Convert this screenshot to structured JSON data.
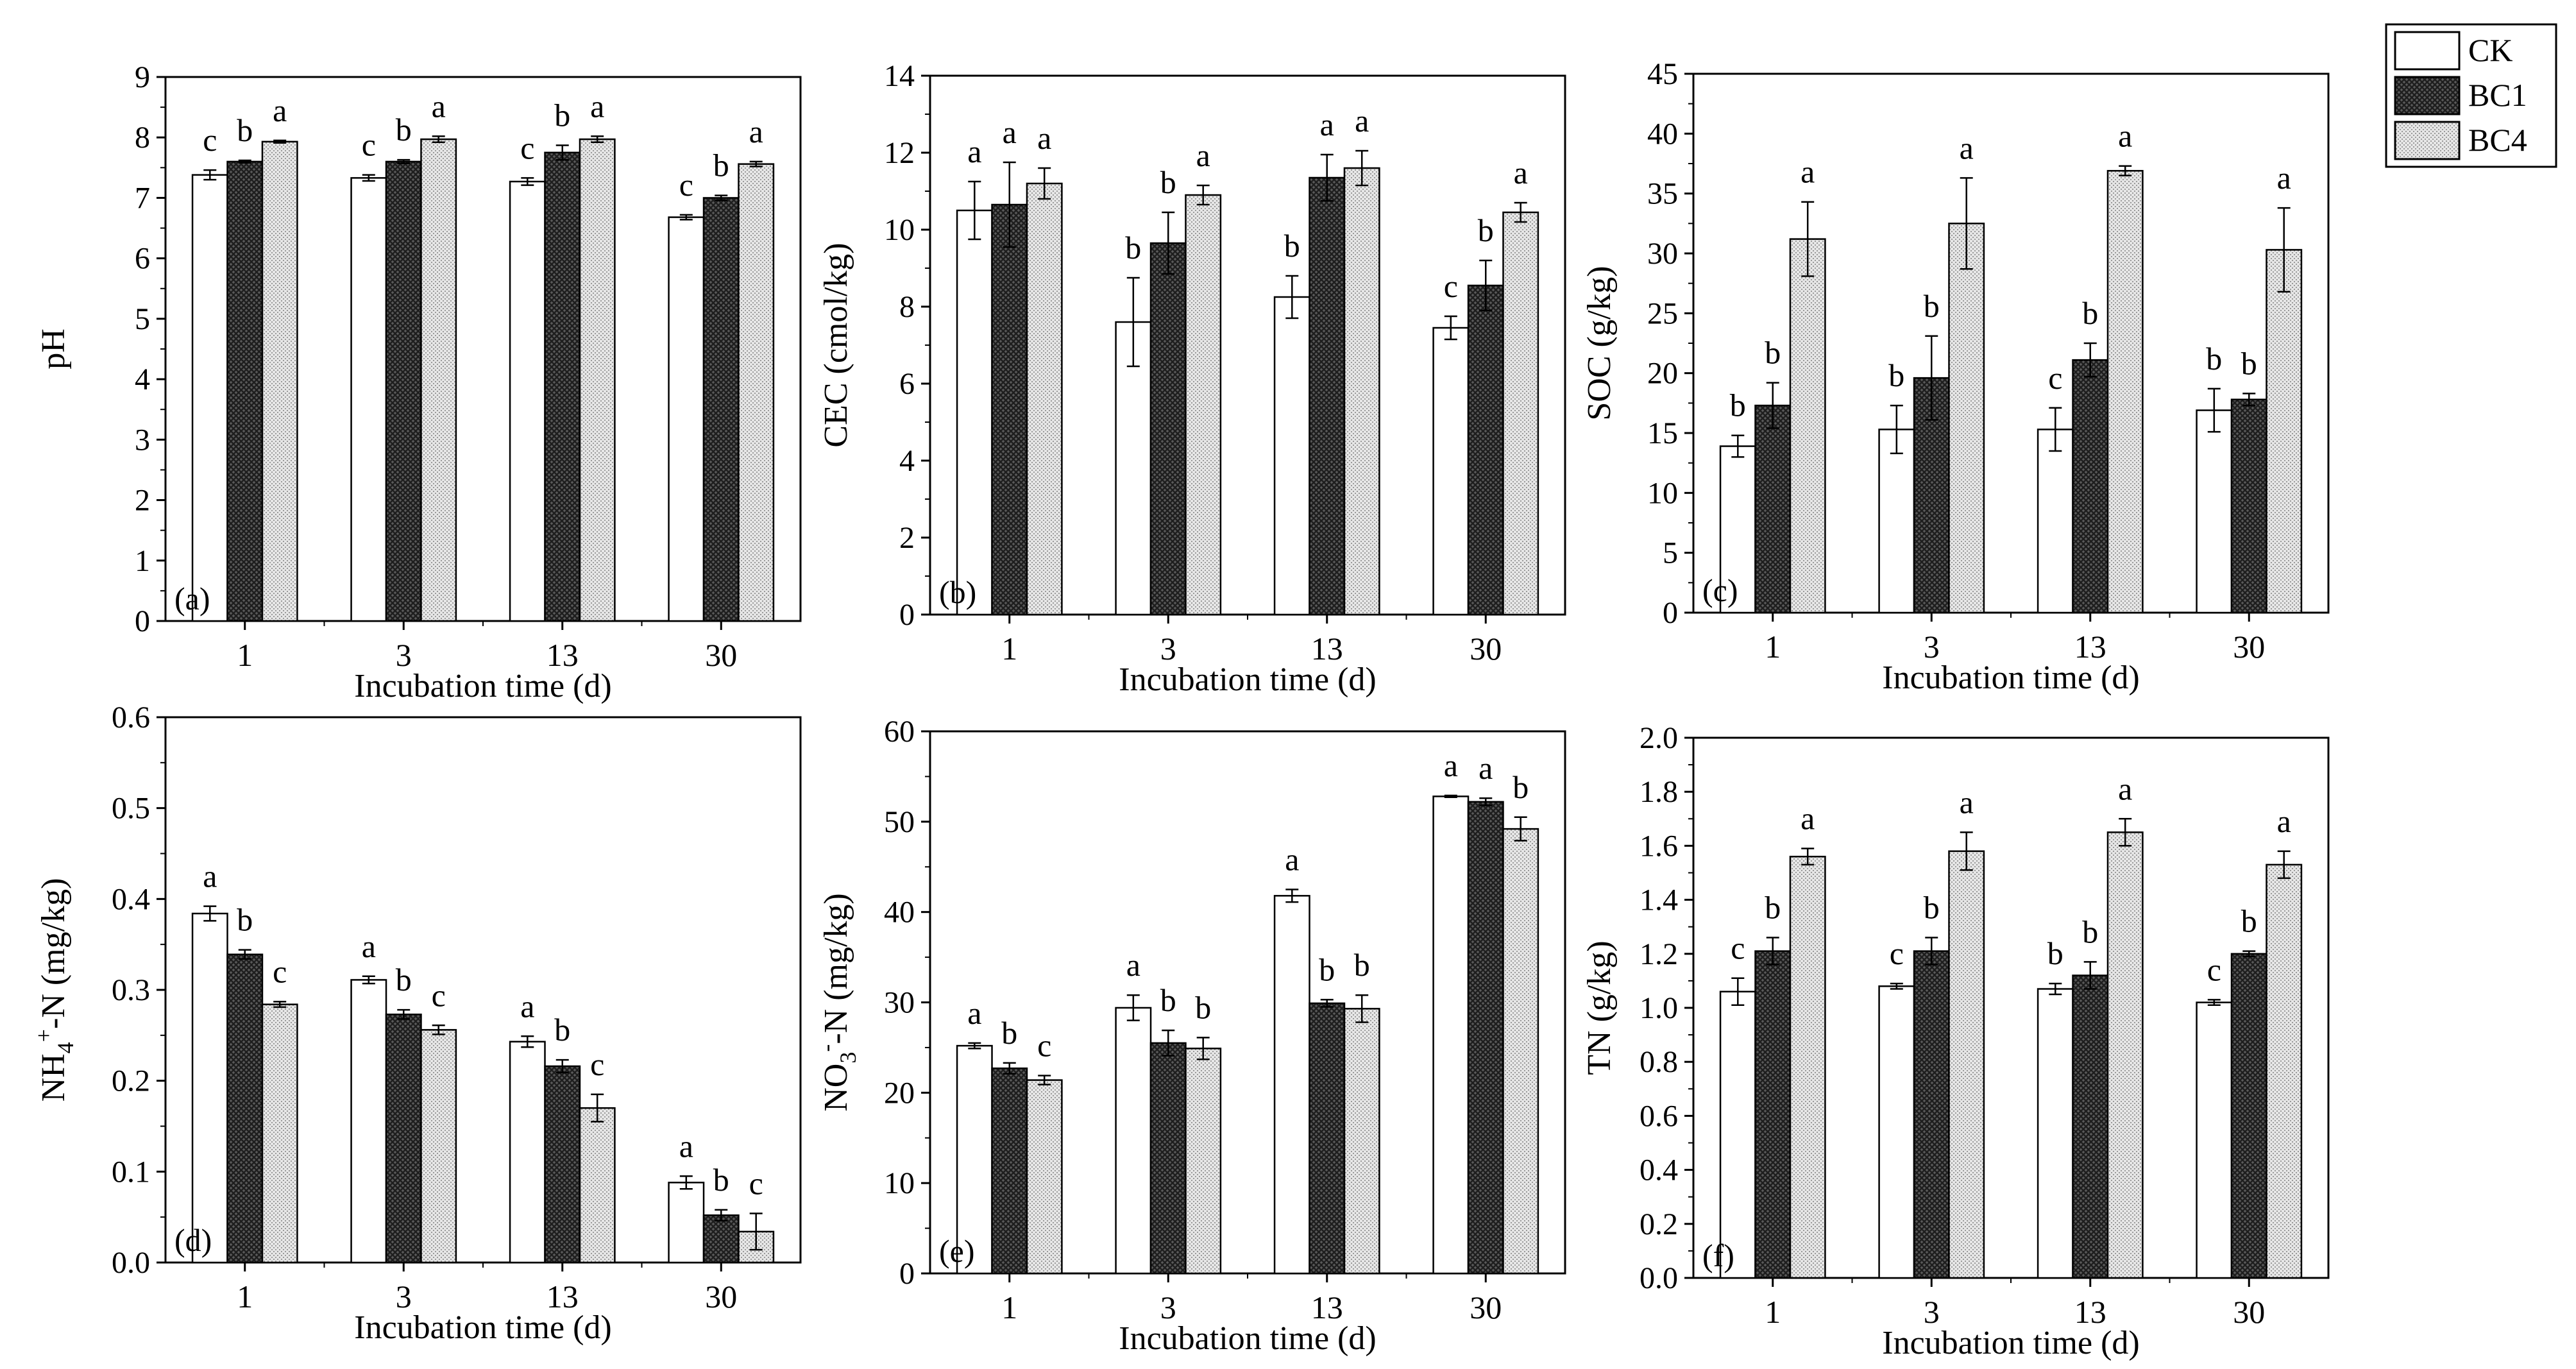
{
  "legend": {
    "entries": [
      {
        "name": "CK",
        "pattern": "white"
      },
      {
        "name": "BC1",
        "pattern": "dark-crosshatch"
      },
      {
        "name": "BC4",
        "pattern": "light-dots"
      }
    ]
  },
  "colors": {
    "ck_fill": "#ffffff",
    "bc1_fill": "#4a4a4a",
    "bc4_fill": "#dcdcdc",
    "axis": "#000000"
  },
  "chart_data": [
    {
      "type": "bar",
      "panel_label": "(a)",
      "categories": [
        "1",
        "3",
        "13",
        "30"
      ],
      "xlabel": "Incubation time (d)",
      "ylabel": "pH",
      "ylim": [
        0,
        9
      ],
      "yticks": [
        "0",
        "1",
        "2",
        "3",
        "4",
        "5",
        "6",
        "7",
        "8",
        "9"
      ],
      "series": [
        {
          "name": "CK",
          "values": [
            7.38,
            7.33,
            7.27,
            6.68
          ],
          "errors": [
            0.08,
            0.05,
            0.06,
            0.04
          ],
          "letters": [
            "c",
            "c",
            "c",
            "c"
          ]
        },
        {
          "name": "BC1",
          "values": [
            7.6,
            7.6,
            7.75,
            7.0
          ],
          "errors": [
            0.02,
            0.03,
            0.12,
            0.04
          ],
          "letters": [
            "b",
            "b",
            "b",
            "b"
          ]
        },
        {
          "name": "BC4",
          "values": [
            7.93,
            7.97,
            7.97,
            7.56
          ],
          "errors": [
            0.02,
            0.05,
            0.05,
            0.04
          ],
          "letters": [
            "a",
            "a",
            "a",
            "a"
          ]
        }
      ]
    },
    {
      "type": "bar",
      "panel_label": "(b)",
      "categories": [
        "1",
        "3",
        "13",
        "30"
      ],
      "xlabel": "Incubation time (d)",
      "ylabel": "CEC (cmol/kg)",
      "ylim": [
        0,
        14
      ],
      "yticks": [
        "0",
        "2",
        "4",
        "6",
        "8",
        "10",
        "12",
        "14"
      ],
      "series": [
        {
          "name": "CK",
          "values": [
            10.5,
            7.6,
            8.25,
            7.45
          ],
          "errors": [
            0.75,
            1.15,
            0.55,
            0.3
          ],
          "letters": [
            "a",
            "b",
            "b",
            "c"
          ]
        },
        {
          "name": "BC1",
          "values": [
            10.65,
            9.65,
            11.35,
            8.55
          ],
          "errors": [
            1.1,
            0.8,
            0.6,
            0.65
          ],
          "letters": [
            "a",
            "b",
            "a",
            "b"
          ]
        },
        {
          "name": "BC4",
          "values": [
            11.2,
            10.9,
            11.6,
            10.45
          ],
          "errors": [
            0.4,
            0.25,
            0.45,
            0.25
          ],
          "letters": [
            "a",
            "a",
            "a",
            "a"
          ]
        }
      ]
    },
    {
      "type": "bar",
      "panel_label": "(c)",
      "categories": [
        "1",
        "3",
        "13",
        "30"
      ],
      "xlabel": "Incubation time (d)",
      "ylabel": "SOC (g/kg)",
      "ylim": [
        0,
        45
      ],
      "yticks": [
        "0",
        "5",
        "10",
        "15",
        "20",
        "25",
        "30",
        "35",
        "40",
        "45"
      ],
      "series": [
        {
          "name": "CK",
          "values": [
            13.9,
            15.3,
            15.3,
            16.9
          ],
          "errors": [
            0.9,
            2.0,
            1.8,
            1.8
          ],
          "letters": [
            "b",
            "b",
            "c",
            "b"
          ]
        },
        {
          "name": "BC1",
          "values": [
            17.3,
            19.6,
            21.1,
            17.8
          ],
          "errors": [
            1.9,
            3.5,
            1.4,
            0.5
          ],
          "letters": [
            "b",
            "b",
            "b",
            "b"
          ]
        },
        {
          "name": "BC4",
          "values": [
            31.2,
            32.5,
            36.9,
            30.3
          ],
          "errors": [
            3.1,
            3.8,
            0.4,
            3.5
          ],
          "letters": [
            "a",
            "a",
            "a",
            "a"
          ]
        }
      ]
    },
    {
      "type": "bar",
      "panel_label": "(d)",
      "categories": [
        "1",
        "3",
        "13",
        "30"
      ],
      "xlabel": "Incubation time (d)",
      "ylabel_main": "NH",
      "ylabel_sub": "4",
      "ylabel_sup": "+",
      "ylabel_rest": "-N (mg/kg)",
      "ylim": [
        0,
        0.6
      ],
      "yticks": [
        "0.0",
        "0.1",
        "0.2",
        "0.3",
        "0.4",
        "0.5",
        "0.6"
      ],
      "series": [
        {
          "name": "CK",
          "values": [
            0.384,
            0.311,
            0.243,
            0.088
          ],
          "errors": [
            0.008,
            0.004,
            0.006,
            0.007
          ],
          "letters": [
            "a",
            "a",
            "a",
            "a"
          ]
        },
        {
          "name": "BC1",
          "values": [
            0.339,
            0.273,
            0.216,
            0.052
          ],
          "errors": [
            0.005,
            0.005,
            0.007,
            0.006
          ],
          "letters": [
            "b",
            "b",
            "b",
            "b"
          ]
        },
        {
          "name": "BC4",
          "values": [
            0.284,
            0.256,
            0.17,
            0.034
          ],
          "errors": [
            0.003,
            0.005,
            0.015,
            0.02
          ],
          "letters": [
            "c",
            "c",
            "c",
            "c"
          ]
        }
      ]
    },
    {
      "type": "bar",
      "panel_label": "(e)",
      "categories": [
        "1",
        "3",
        "13",
        "30"
      ],
      "xlabel": "Incubation time (d)",
      "ylabel_main": "NO",
      "ylabel_sub": "3",
      "ylabel_sup": "-",
      "ylabel_rest": "-N (mg/kg)",
      "ylim": [
        0,
        60
      ],
      "yticks": [
        "0",
        "10",
        "20",
        "30",
        "40",
        "50",
        "60"
      ],
      "series": [
        {
          "name": "CK",
          "values": [
            25.2,
            29.4,
            41.8,
            52.8
          ],
          "errors": [
            0.3,
            1.4,
            0.7,
            0.1
          ],
          "letters": [
            "a",
            "a",
            "a",
            "a"
          ]
        },
        {
          "name": "BC1",
          "values": [
            22.7,
            25.5,
            29.9,
            52.2
          ],
          "errors": [
            0.6,
            1.4,
            0.4,
            0.4
          ],
          "letters": [
            "b",
            "b",
            "b",
            "a"
          ]
        },
        {
          "name": "BC4",
          "values": [
            21.4,
            24.9,
            29.3,
            49.2
          ],
          "errors": [
            0.5,
            1.2,
            1.5,
            1.3
          ],
          "letters": [
            "c",
            "b",
            "b",
            "b"
          ]
        }
      ]
    },
    {
      "type": "bar",
      "panel_label": "(f)",
      "categories": [
        "1",
        "3",
        "13",
        "30"
      ],
      "xlabel": "Incubation time (d)",
      "ylabel": "TN (g/kg)",
      "ylim": [
        0,
        2.0
      ],
      "yticks": [
        "0.0",
        "0.2",
        "0.4",
        "0.6",
        "0.8",
        "1.0",
        "1.2",
        "1.4",
        "1.6",
        "1.8",
        "2.0"
      ],
      "series": [
        {
          "name": "CK",
          "values": [
            1.06,
            1.08,
            1.07,
            1.02
          ],
          "errors": [
            0.05,
            0.01,
            0.02,
            0.01
          ],
          "letters": [
            "c",
            "c",
            "b",
            "c"
          ]
        },
        {
          "name": "BC1",
          "values": [
            1.21,
            1.21,
            1.12,
            1.2
          ],
          "errors": [
            0.05,
            0.05,
            0.05,
            0.01
          ],
          "letters": [
            "b",
            "b",
            "b",
            "b"
          ]
        },
        {
          "name": "BC4",
          "values": [
            1.56,
            1.58,
            1.65,
            1.53
          ],
          "errors": [
            0.03,
            0.07,
            0.05,
            0.05
          ],
          "letters": [
            "a",
            "a",
            "a",
            "a"
          ]
        }
      ]
    }
  ]
}
